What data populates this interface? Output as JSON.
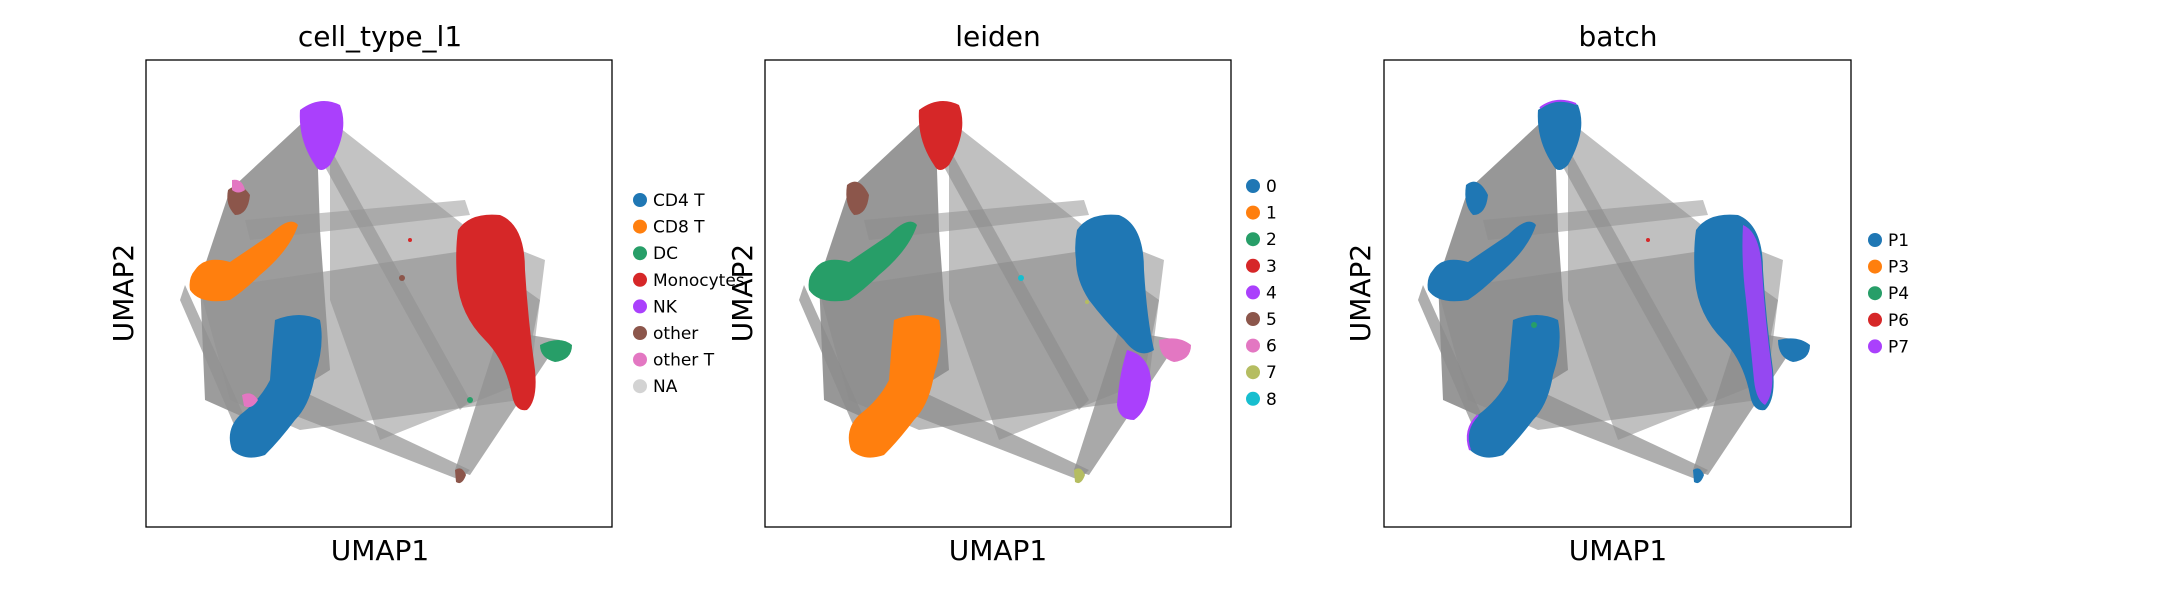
{
  "chart_data": [
    {
      "type": "scatter",
      "title": "cell_type_l1",
      "xlabel": "UMAP1",
      "ylabel": "UMAP2",
      "grid": false,
      "legend_position": "right",
      "legend": [
        {
          "label": "CD4 T",
          "color": "#1f77b4"
        },
        {
          "label": "CD8 T",
          "color": "#ff7f0e"
        },
        {
          "label": "DC",
          "color": "#279e68"
        },
        {
          "label": "Monocytes",
          "color": "#d62728"
        },
        {
          "label": "NK",
          "color": "#aa40fc"
        },
        {
          "label": "other",
          "color": "#8c564b"
        },
        {
          "label": "other T",
          "color": "#e377c2"
        },
        {
          "label": "NA",
          "color": "#d3d3d3"
        }
      ],
      "clusters": [
        {
          "name": "NK",
          "color": "#aa40fc",
          "x": 3.8,
          "y": 9.3
        },
        {
          "name": "other",
          "color": "#8c564b",
          "x": 2.0,
          "y": 7.2
        },
        {
          "name": "CD8 T",
          "color": "#ff7f0e",
          "x": 1.2,
          "y": 5.8
        },
        {
          "name": "CD4 T",
          "color": "#1f77b4",
          "x": 2.8,
          "y": 2.4
        },
        {
          "name": "Monocytes",
          "color": "#d62728",
          "x": 7.6,
          "y": 5.6
        },
        {
          "name": "DC",
          "color": "#279e68",
          "x": 8.9,
          "y": 3.8
        },
        {
          "name": "other T",
          "color": "#e377c2",
          "x": 2.1,
          "y": 2.8
        },
        {
          "name": "other",
          "color": "#8c564b",
          "x": 6.6,
          "y": 1.0
        }
      ]
    },
    {
      "type": "scatter",
      "title": "leiden",
      "xlabel": "UMAP1",
      "ylabel": "UMAP2",
      "grid": false,
      "legend_position": "right",
      "legend": [
        {
          "label": "0",
          "color": "#1f77b4"
        },
        {
          "label": "1",
          "color": "#ff7f0e"
        },
        {
          "label": "2",
          "color": "#279e68"
        },
        {
          "label": "3",
          "color": "#d62728"
        },
        {
          "label": "4",
          "color": "#aa40fc"
        },
        {
          "label": "5",
          "color": "#8c564b"
        },
        {
          "label": "6",
          "color": "#e377c2"
        },
        {
          "label": "7",
          "color": "#b5bd61"
        },
        {
          "label": "8",
          "color": "#17becf"
        }
      ],
      "clusters": [
        {
          "name": "3",
          "color": "#d62728",
          "x": 3.8,
          "y": 9.3
        },
        {
          "name": "5",
          "color": "#8c564b",
          "x": 2.0,
          "y": 7.2
        },
        {
          "name": "2",
          "color": "#279e68",
          "x": 1.2,
          "y": 5.8
        },
        {
          "name": "1",
          "color": "#ff7f0e",
          "x": 2.8,
          "y": 2.4
        },
        {
          "name": "0",
          "color": "#1f77b4",
          "x": 7.6,
          "y": 5.6
        },
        {
          "name": "4",
          "color": "#aa40fc",
          "x": 7.9,
          "y": 2.8
        },
        {
          "name": "6",
          "color": "#e377c2",
          "x": 8.9,
          "y": 3.8
        },
        {
          "name": "7",
          "color": "#b5bd61",
          "x": 6.6,
          "y": 1.0
        },
        {
          "name": "8",
          "color": "#17becf",
          "x": 5.4,
          "y": 5.3
        }
      ]
    },
    {
      "type": "scatter",
      "title": "batch",
      "xlabel": "UMAP1",
      "ylabel": "UMAP2",
      "grid": false,
      "legend_position": "right",
      "legend": [
        {
          "label": "P1",
          "color": "#1f77b4"
        },
        {
          "label": "P3",
          "color": "#ff7f0e"
        },
        {
          "label": "P4",
          "color": "#279e68"
        },
        {
          "label": "P6",
          "color": "#d62728"
        },
        {
          "label": "P7",
          "color": "#aa40fc"
        }
      ],
      "clusters": [
        {
          "name": "P1",
          "color": "#1f77b4",
          "x": 3.8,
          "y": 9.3
        },
        {
          "name": "P1",
          "color": "#1f77b4",
          "x": 1.2,
          "y": 5.8
        },
        {
          "name": "P1",
          "color": "#1f77b4",
          "x": 2.8,
          "y": 2.4
        },
        {
          "name": "P1",
          "color": "#1f77b4",
          "x": 7.6,
          "y": 5.6
        },
        {
          "name": "P7",
          "color": "#aa40fc",
          "x": 8.2,
          "y": 4.5
        },
        {
          "name": "P1",
          "color": "#1f77b4",
          "x": 6.6,
          "y": 1.0
        }
      ]
    }
  ]
}
